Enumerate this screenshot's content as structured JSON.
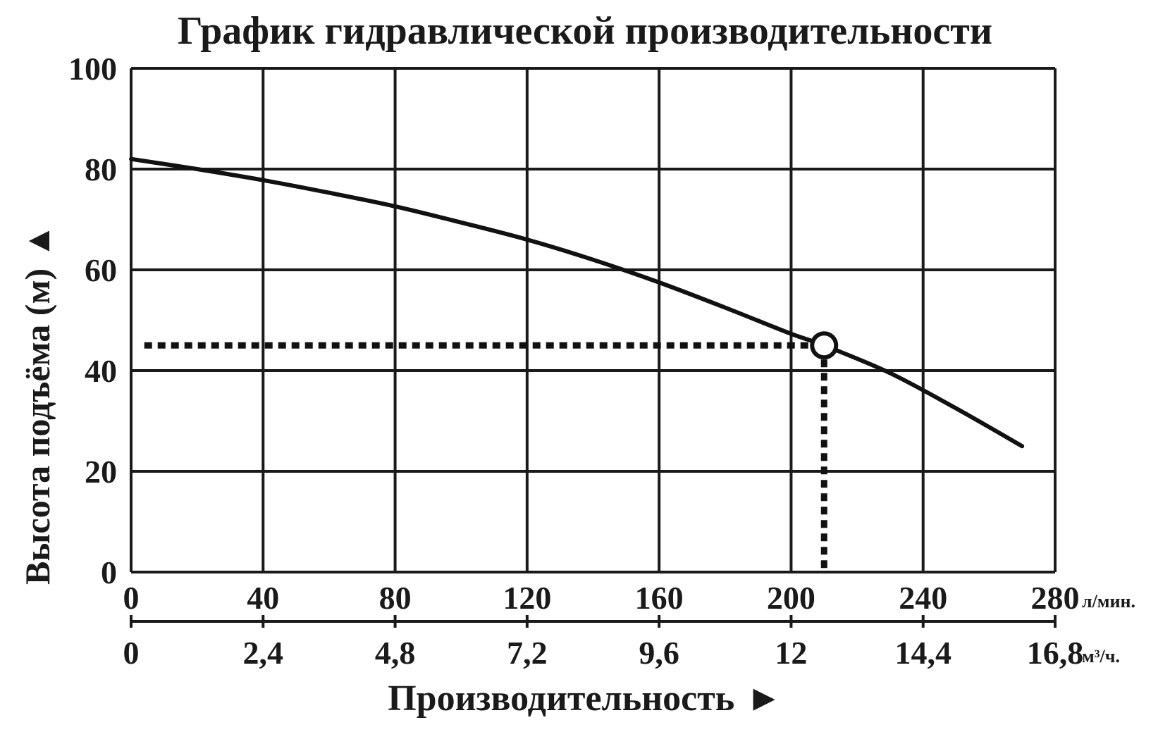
{
  "chart_data": {
    "type": "line",
    "title": "График гидравлической производительности",
    "ylabel": "Высота подъёма (м)",
    "ylabel_arrow": "▲",
    "xlabel": "Производительность",
    "xlabel_arrow": "►",
    "xlim": [
      0,
      280
    ],
    "ylim": [
      0,
      100
    ],
    "x_ticks": [
      "0",
      "40",
      "80",
      "120",
      "160",
      "200",
      "240",
      "280"
    ],
    "x_tick_values": [
      0,
      40,
      80,
      120,
      160,
      200,
      240,
      280
    ],
    "x_unit": "л/мин.",
    "x2_ticks": [
      "0",
      "2,4",
      "4,8",
      "7,2",
      "9,6",
      "12",
      "14,4",
      "16,8"
    ],
    "x2_unit": "м³/ч.",
    "y_ticks": [
      "0",
      "20",
      "40",
      "60",
      "80",
      "100"
    ],
    "y_tick_values": [
      0,
      20,
      40,
      60,
      80,
      100
    ],
    "grid": true,
    "series": [
      {
        "x": [
          0,
          20,
          40,
          60,
          80,
          100,
          120,
          140,
          160,
          180,
          200,
          210,
          230,
          250,
          270
        ],
        "y": [
          82,
          80,
          77.8,
          75.3,
          72.6,
          69.4,
          66,
          62,
          57.5,
          52.5,
          47.3,
          45,
          39.5,
          32.5,
          25
        ]
      }
    ],
    "operating_point": {
      "x": 210,
      "y": 45
    },
    "colors": {
      "line": "#111111",
      "grid": "#1a1a1a",
      "text": "#1a1a1a"
    }
  }
}
